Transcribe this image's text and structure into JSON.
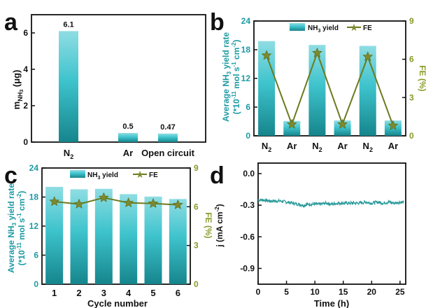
{
  "colors": {
    "bar_top": "#8fdde3",
    "bar_mid": "#3ec3cc",
    "bar_bottom": "#16858c",
    "fe_line": "#6b7a1f",
    "fe_marker": "#7c8a2e",
    "teal_text": "#1c9aa3",
    "olive_text": "#8a9a2a",
    "axis": "#111111",
    "trace": "#2a9a9a"
  },
  "chart_data": [
    {
      "panel": "a",
      "type": "bar",
      "categories": [
        "N2",
        "Ar",
        "Open circuit"
      ],
      "values": [
        6.1,
        0.5,
        0.47
      ],
      "value_labels": [
        "6.1",
        "0.5",
        "0.47"
      ],
      "ylabel": "m_NH3 (μg)",
      "ylim": [
        0,
        7
      ],
      "yticks": [
        0,
        2,
        4,
        6
      ]
    },
    {
      "panel": "b",
      "type": "bar",
      "categories": [
        "N2",
        "Ar",
        "N2",
        "Ar",
        "N2",
        "Ar"
      ],
      "series": [
        {
          "name": "NH3 yield",
          "type": "bar",
          "axis": "left",
          "values": [
            19.8,
            3.1,
            19.0,
            3.2,
            18.8,
            3.2
          ]
        },
        {
          "name": "FE",
          "type": "line",
          "axis": "right",
          "values": [
            6.3,
            0.9,
            6.5,
            0.9,
            6.2,
            0.8
          ]
        }
      ],
      "ylabel": "Average NH3 yield rate (*10^-11 mol s^-1 cm^-2)",
      "ylabel_right": "FE (%)",
      "ylim": [
        0,
        24
      ],
      "yticks": [
        0,
        6,
        12,
        18,
        24
      ],
      "ylim_right": [
        0,
        9
      ],
      "yticks_right": [
        0,
        3,
        6,
        9
      ],
      "legend": "top"
    },
    {
      "panel": "c",
      "type": "bar",
      "categories": [
        "1",
        "2",
        "3",
        "4",
        "5",
        "6"
      ],
      "series": [
        {
          "name": "NH3 yield",
          "type": "bar",
          "axis": "left",
          "values": [
            20.1,
            19.6,
            19.7,
            18.6,
            18.1,
            17.6
          ]
        },
        {
          "name": "FE",
          "type": "line",
          "axis": "right",
          "values": [
            6.4,
            6.2,
            6.7,
            6.3,
            6.25,
            6.15
          ]
        }
      ],
      "xlabel": "Cycle number",
      "ylabel": "Average NH3 yield rate (*10^-11 mol s^-1 cm^-2)",
      "ylabel_right": "FE (%)",
      "ylim": [
        0,
        24
      ],
      "yticks": [
        0,
        6,
        12,
        18,
        24
      ],
      "ylim_right": [
        0,
        9
      ],
      "yticks_right": [
        0,
        3,
        6,
        9
      ],
      "legend": "top"
    },
    {
      "panel": "d",
      "type": "line",
      "xlabel": "Time (h)",
      "ylabel": "j (mA cm^-2)",
      "xlim": [
        0,
        26
      ],
      "xticks": [
        0,
        5,
        10,
        15,
        20,
        25
      ],
      "ylim": [
        -1.05,
        0.1
      ],
      "yticks": [
        0.0,
        -0.3,
        -0.6,
        -0.9
      ],
      "series": [
        {
          "x": [
            0,
            1,
            2,
            3,
            4,
            5,
            6,
            7,
            8,
            9,
            10,
            11,
            12,
            13,
            14,
            15,
            16,
            17,
            18,
            19,
            20,
            21,
            22,
            23,
            24,
            25,
            25.6
          ],
          "y": [
            -0.25,
            -0.25,
            -0.26,
            -0.26,
            -0.26,
            -0.27,
            -0.28,
            -0.29,
            -0.3,
            -0.29,
            -0.29,
            -0.29,
            -0.28,
            -0.29,
            -0.28,
            -0.28,
            -0.28,
            -0.28,
            -0.28,
            -0.27,
            -0.28,
            -0.27,
            -0.28,
            -0.27,
            -0.28,
            -0.27,
            -0.27
          ]
        }
      ]
    }
  ],
  "labels": {
    "a": {
      "panel_letter": "a",
      "ylabel_main": "m",
      "ylabel_sub": "NH",
      "ylabel_sub2": "3",
      "ylabel_unit": " (μg)",
      "cat_main": [
        "N",
        "Ar",
        "Open circuit"
      ],
      "cat_sub": [
        "2",
        "",
        ""
      ]
    },
    "b": {
      "panel_letter": "b",
      "ylabel_line1": "Average NH",
      "ylabel_line1_sub": "3",
      "ylabel_line1_end": " yield rate",
      "ylabel_line2": "(*10",
      "ylabel_line2_sup": "-11",
      "ylabel_line2_mid": " mol s",
      "ylabel_line2_sup2": "-1",
      "ylabel_line2_mid2": " cm",
      "ylabel_line2_sup3": "-2",
      "ylabel_line2_end": ")",
      "ylabel_right": "FE (%)",
      "legend_bar_main": "NH",
      "legend_bar_sub": "3",
      "legend_bar_end": " yield",
      "legend_line": "FE",
      "cat_main": [
        "N",
        "Ar",
        "N",
        "Ar",
        "N",
        "Ar"
      ],
      "cat_sub": [
        "2",
        "",
        "2",
        "",
        "2",
        ""
      ]
    },
    "c": {
      "panel_letter": "c",
      "xlabel": "Cycle number"
    },
    "d": {
      "panel_letter": "d",
      "xlabel": "Time (h)",
      "ylabel_main": "j (mA cm",
      "ylabel_sup": "-2",
      "ylabel_end": ")"
    }
  }
}
